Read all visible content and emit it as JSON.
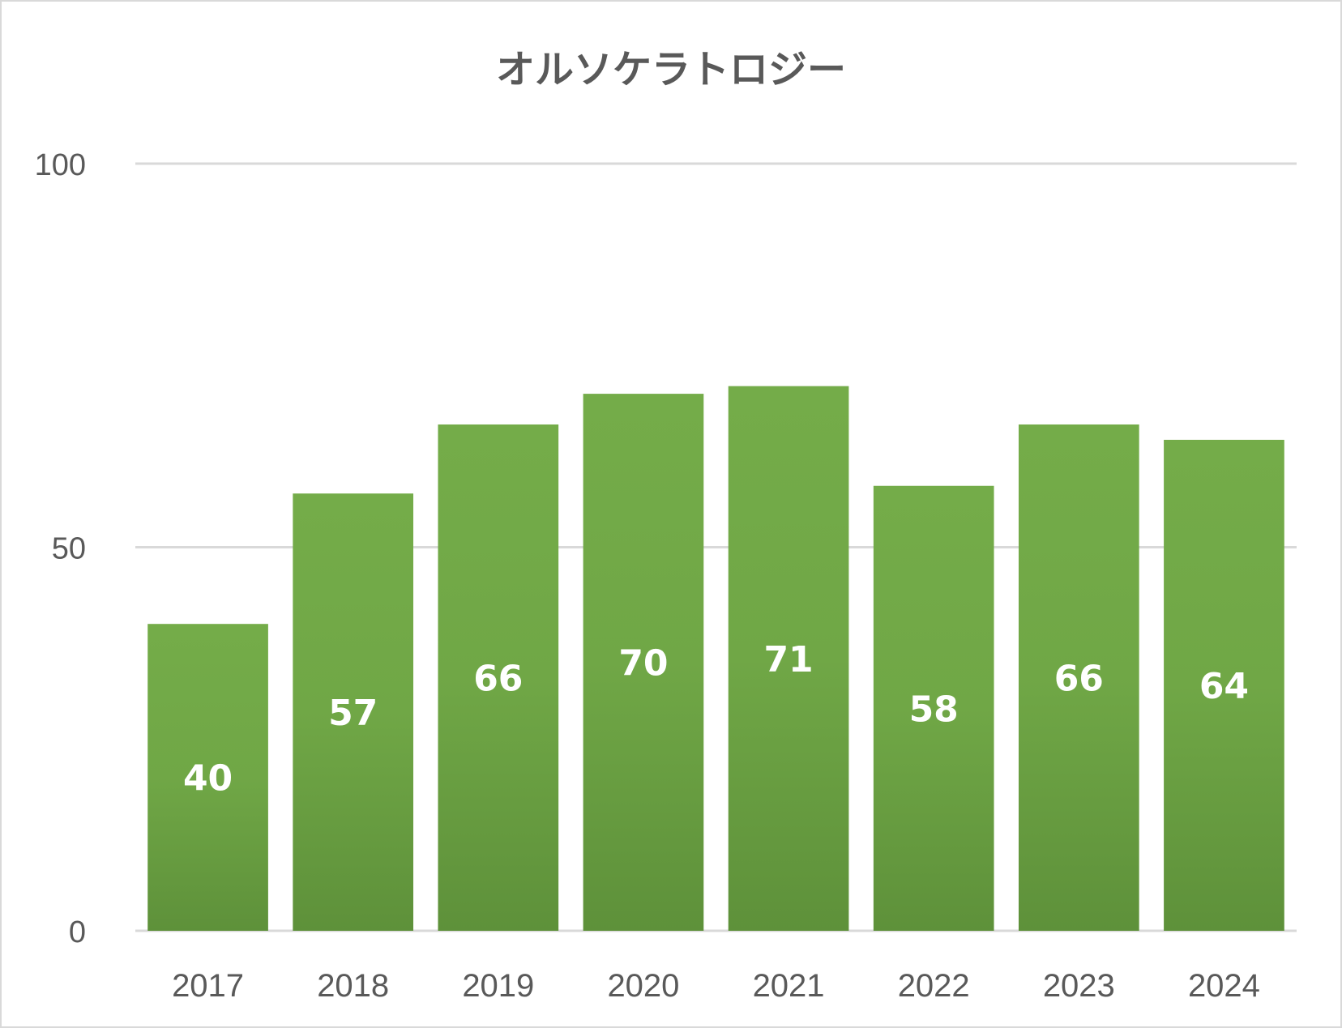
{
  "chart_data": {
    "type": "bar",
    "title": "オルソケラトロジー",
    "xlabel": "",
    "ylabel": "",
    "categories": [
      "2017",
      "2018",
      "2019",
      "2020",
      "2021",
      "2022",
      "2023",
      "2024"
    ],
    "values": [
      40,
      57,
      66,
      70,
      71,
      58,
      66,
      64
    ],
    "data_labels": [
      "40",
      "57",
      "66",
      "70",
      "71",
      "58",
      "66",
      "64"
    ],
    "ylim": [
      0,
      100
    ],
    "yticks": [
      "0",
      "50",
      "100"
    ],
    "grid": true,
    "legend": "none",
    "colors": {
      "bar_top": "#74ac49",
      "bar_bottom": "#5e913a",
      "gridline": "#d9d9d9",
      "text": "#595959",
      "label": "#ffffff"
    }
  }
}
